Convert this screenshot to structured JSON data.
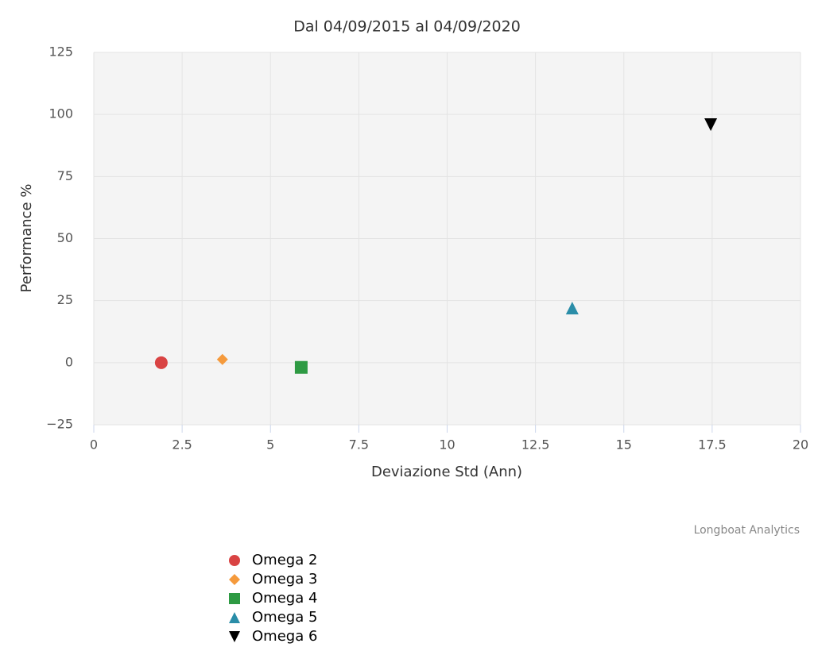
{
  "chart_data": {
    "type": "scatter",
    "title": "Dal 04/09/2015 al 04/09/2020",
    "x_label": "Deviazione Std (Ann)",
    "y_label": "Performance %",
    "credit": "Longboat Analytics",
    "xlim": [
      0,
      20
    ],
    "xticks": [
      0,
      2.5,
      5,
      7.5,
      10,
      12.5,
      15,
      17.5,
      20
    ],
    "ylim": [
      -25,
      125
    ],
    "yticks": [
      {
        "value": -25,
        "label": "−25"
      },
      0,
      25,
      50,
      75,
      100,
      125
    ],
    "grid": true,
    "series": [
      {
        "name": "Omega 2",
        "color": "#d94343",
        "marker": "circle",
        "x": [
          1.91
        ],
        "y": [
          0
        ]
      },
      {
        "name": "Omega 3",
        "color": "#f59a3c",
        "marker": "diamond",
        "x": [
          3.64
        ],
        "y": [
          1.3
        ]
      },
      {
        "name": "Omega 4",
        "color": "#2e9a43",
        "marker": "square",
        "x": [
          5.87
        ],
        "y": [
          -1.9
        ]
      },
      {
        "name": "Omega 5",
        "color": "#2a8da8",
        "marker": "triangle",
        "x": [
          13.54
        ],
        "y": [
          22
        ]
      },
      {
        "name": "Omega 6",
        "color": "#000000",
        "marker": "triangle-down",
        "x": [
          17.46
        ],
        "y": [
          95.9
        ]
      }
    ]
  }
}
